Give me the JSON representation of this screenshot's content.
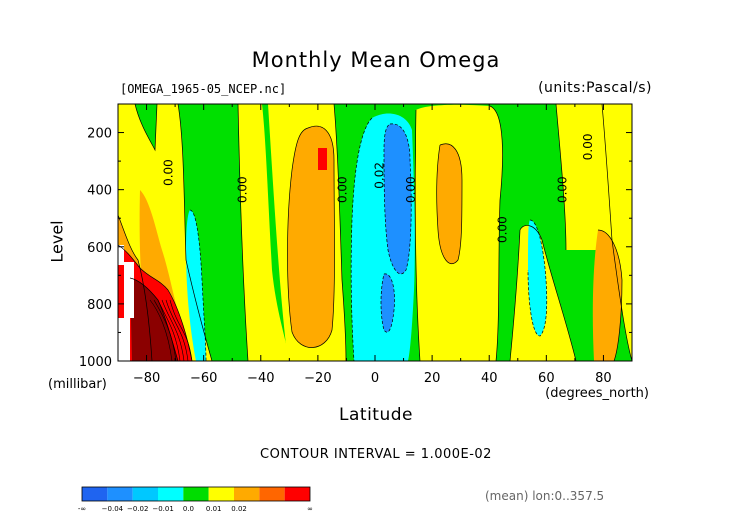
{
  "chart_data": {
    "type": "contour",
    "title": "Monthly Mean Omega",
    "file_label": "[OMEGA_1965-05_NCEP.nc]",
    "units_label": "(units:Pascal/s)",
    "xlabel": "Latitude",
    "x_units": "(degrees_north)",
    "ylabel": "Level",
    "y_units": "(millibar)",
    "xlim": [
      -90,
      90
    ],
    "ylim": [
      1000,
      100
    ],
    "x_ticks": [
      -80,
      -60,
      -40,
      -20,
      0,
      20,
      40,
      60,
      80
    ],
    "x_tick_labels": [
      "-80",
      "-60",
      "-40",
      "-20",
      "0",
      "20",
      "40",
      "60",
      "80"
    ],
    "y_ticks": [
      200,
      400,
      600,
      800,
      1000
    ],
    "y_tick_labels": [
      "200",
      "400",
      "600",
      "800",
      "1000"
    ],
    "contour_interval_text": "CONTOUR INTERVAL = 1.000E-02",
    "mean_text": "(mean) lon:0..357.5",
    "contour_labels": [
      {
        "text": "0.00",
        "x": -71,
        "y": 340
      },
      {
        "text": "0.00",
        "x": -45,
        "y": 400
      },
      {
        "text": "0.00",
        "x": -10,
        "y": 400
      },
      {
        "text": "0.02",
        "x": 3,
        "y": 350
      },
      {
        "text": "0.00",
        "x": 14,
        "y": 400
      },
      {
        "text": "0.00",
        "x": 46,
        "y": 540
      },
      {
        "text": "0.00",
        "x": 67,
        "y": 400
      },
      {
        "text": "0.00",
        "x": 76,
        "y": 250
      }
    ],
    "colorbar": {
      "colors": [
        "#1f64f0",
        "#1e90ff",
        "#00c8ff",
        "#00ffff",
        "#00dd00",
        "#ffff00",
        "#ffaa00",
        "#ff6600",
        "#ff0000"
      ],
      "labels": [
        "-∞",
        "−0.04",
        "−0.02",
        "−0.01",
        "0.0",
        "0.01",
        "0.02",
        "∞"
      ]
    },
    "fill_colors": {
      "green": "#00e000",
      "yellow": "#ffff00",
      "orange": "#ffaa00",
      "red": "#ff0000",
      "darkred": "#8b0000",
      "cyan": "#00ffff",
      "blue": "#1e90ff",
      "white": "#ffffff"
    }
  }
}
